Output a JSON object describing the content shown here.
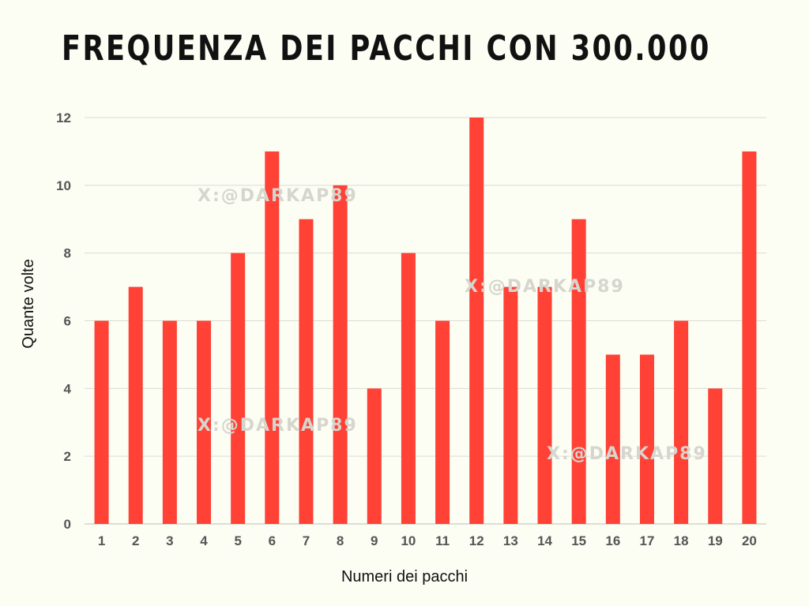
{
  "chart_data": {
    "type": "bar",
    "title": "FREQUENZA DEI PACCHI CON 300.000",
    "xlabel": "Numeri dei pacchi",
    "ylabel": "Quante volte",
    "categories": [
      "1",
      "2",
      "3",
      "4",
      "5",
      "6",
      "7",
      "8",
      "9",
      "10",
      "11",
      "12",
      "13",
      "14",
      "15",
      "16",
      "17",
      "18",
      "19",
      "20"
    ],
    "values": [
      6,
      7,
      6,
      6,
      8,
      11,
      9,
      10,
      4,
      8,
      6,
      12,
      7,
      7,
      9,
      5,
      5,
      6,
      4,
      11
    ],
    "ylim": [
      0,
      12
    ],
    "yticks": [
      0,
      2,
      4,
      6,
      8,
      10,
      12
    ],
    "grid": true,
    "legend": "none",
    "bar_color": "#ff4136"
  },
  "watermark": "X:@DARKAP89",
  "colors": {
    "background": "#fcfdf3",
    "grid": "#dcdcd4"
  }
}
